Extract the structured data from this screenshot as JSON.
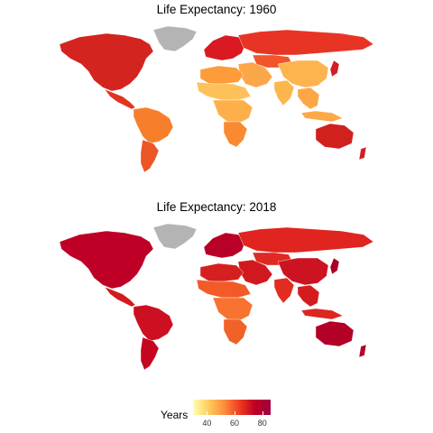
{
  "maps": [
    {
      "title": "Life Expectancy: 1960",
      "colors": {
        "north_america": "#d4241f",
        "greenland": "#b4b4b4",
        "central_america": "#e0351f",
        "south_america_north": "#f77f2c",
        "south_america_south": "#ec5525",
        "europe": "#d91a22",
        "russia": "#e83424",
        "africa_north": "#fd9c38",
        "africa_sahel": "#fec15a",
        "africa_central": "#fdb04a",
        "africa_south": "#f98a31",
        "middle_east": "#fca64a",
        "india": "#fdb64c",
        "china": "#fdb44e",
        "southeast_asia": "#fda645",
        "japan": "#d01e24",
        "indonesia": "#fcaa48",
        "australia": "#d1211f",
        "new_zealand": "#d1211f",
        "central_asia": "#f0552b"
      }
    },
    {
      "title": "Life Expectancy: 2018",
      "colors": {
        "north_america": "#bf0026",
        "greenland": "#b4b4b4",
        "central_america": "#d6191f",
        "south_america_north": "#cc1021",
        "south_america_south": "#c5061f",
        "europe": "#b90026",
        "russia": "#e0241f",
        "africa_north": "#d6201f",
        "africa_sahel": "#f25a28",
        "africa_central": "#f87230",
        "africa_south": "#f06226",
        "middle_east": "#d2181f",
        "india": "#e22c20",
        "china": "#cc1322",
        "southeast_asia": "#d41c1f",
        "japan": "#a90026",
        "indonesia": "#dc2620",
        "australia": "#b30026",
        "new_zealand": "#b30026",
        "central_asia": "#df2a22"
      }
    }
  ],
  "legend": {
    "title": "Years",
    "min": 30,
    "max": 86,
    "ticks": [
      40,
      60,
      80
    ],
    "gradient": [
      "#ffffb2",
      "#fecc5c",
      "#fd8d3c",
      "#f03b20",
      "#bd0026",
      "#9e0142"
    ]
  }
}
